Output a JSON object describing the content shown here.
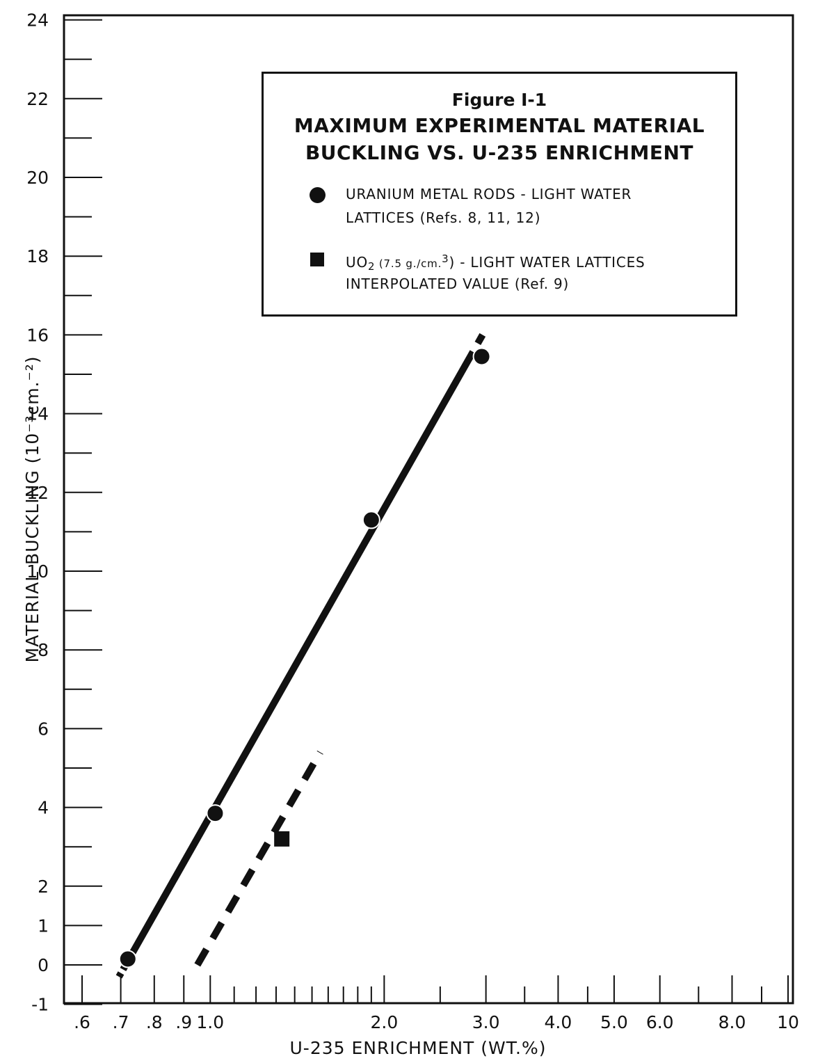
{
  "chart_data": {
    "type": "line",
    "title": "Figure I-1",
    "subtitle_line1": "MAXIMUM EXPERIMENTAL MATERIAL",
    "subtitle_line2": "BUCKLING VS. U-235 ENRICHMENT",
    "xlabel": "U-235 ENRICHMENT (WT.%)",
    "ylabel": "MATERIAL BUCKLING (10⁻³cm.⁻²)",
    "x_scale": "log",
    "xlim": [
      0.6,
      10
    ],
    "ylim": [
      -1,
      24
    ],
    "x_ticks": [
      {
        "value": 0.6,
        "label": ".6"
      },
      {
        "value": 0.7,
        "label": ".7"
      },
      {
        "value": 0.8,
        "label": ".8"
      },
      {
        "value": 0.9,
        "label": ".9"
      },
      {
        "value": 1.0,
        "label": "1.0"
      },
      {
        "value": 2.0,
        "label": "2.0"
      },
      {
        "value": 3.0,
        "label": "3.0"
      },
      {
        "value": 4.0,
        "label": "4.0"
      },
      {
        "value": 5.0,
        "label": "5.0"
      },
      {
        "value": 6.0,
        "label": "6.0"
      },
      {
        "value": 8.0,
        "label": "8.0"
      },
      {
        "value": 10,
        "label": "10"
      }
    ],
    "x_minor_ticks": [
      1.1,
      1.2,
      1.3,
      1.4,
      1.5,
      1.6,
      1.7,
      1.8,
      1.9,
      2.5,
      3.5,
      4.5,
      7.0,
      9.0
    ],
    "y_ticks": [
      {
        "value": -1,
        "label": "-1"
      },
      {
        "value": 0,
        "label": "0"
      },
      {
        "value": 1,
        "label": "1"
      },
      {
        "value": 2,
        "label": "2"
      },
      {
        "value": 4,
        "label": "4"
      },
      {
        "value": 6,
        "label": "6"
      },
      {
        "value": 8,
        "label": "8"
      },
      {
        "value": 10,
        "label": "10"
      },
      {
        "value": 12,
        "label": "12"
      },
      {
        "value": 14,
        "label": "14"
      },
      {
        "value": 16,
        "label": "16"
      },
      {
        "value": 18,
        "label": "18"
      },
      {
        "value": 20,
        "label": "20"
      },
      {
        "value": 22,
        "label": "22"
      },
      {
        "value": 24,
        "label": "24"
      }
    ],
    "y_minor_ticks": [
      3,
      5,
      7,
      9,
      11,
      13,
      15,
      17,
      19,
      21,
      23
    ],
    "legend": {
      "position": "top-right",
      "entries": [
        {
          "marker": "circle",
          "line1": "URANIUM METAL RODS - LIGHT WATER",
          "line2": "LATTICES (Refs. 8, 11, 12)"
        },
        {
          "marker": "square",
          "line1_pre": "UO",
          "line1_sub": "2",
          "line1_mid": " (7.5 g./cm.",
          "line1_sup": "3",
          "line1_post": ") - LIGHT WATER LATTICES",
          "line2": "INTERPOLATED VALUE (Ref. 9)"
        }
      ]
    },
    "series": [
      {
        "marker": "circle",
        "points": [
          {
            "x": 0.72,
            "y": 0.15
          },
          {
            "x": 1.02,
            "y": 3.85
          },
          {
            "x": 1.9,
            "y": 11.3
          },
          {
            "x": 2.95,
            "y": 15.45
          }
        ],
        "fit_line": {
          "style": "solid-with-dashed-ends",
          "from": {
            "x": 0.695,
            "y": -0.3
          },
          "to": {
            "x": 2.96,
            "y": 16.0
          }
        }
      },
      {
        "marker": "square",
        "points": [
          {
            "x": 1.33,
            "y": 3.2
          }
        ],
        "fit_line": {
          "style": "dashed",
          "from": {
            "x": 0.95,
            "y": 0.0
          },
          "to": {
            "x": 1.55,
            "y": 5.4
          }
        }
      }
    ],
    "colors": {
      "ink": "#111111",
      "background": "#ffffff"
    }
  }
}
